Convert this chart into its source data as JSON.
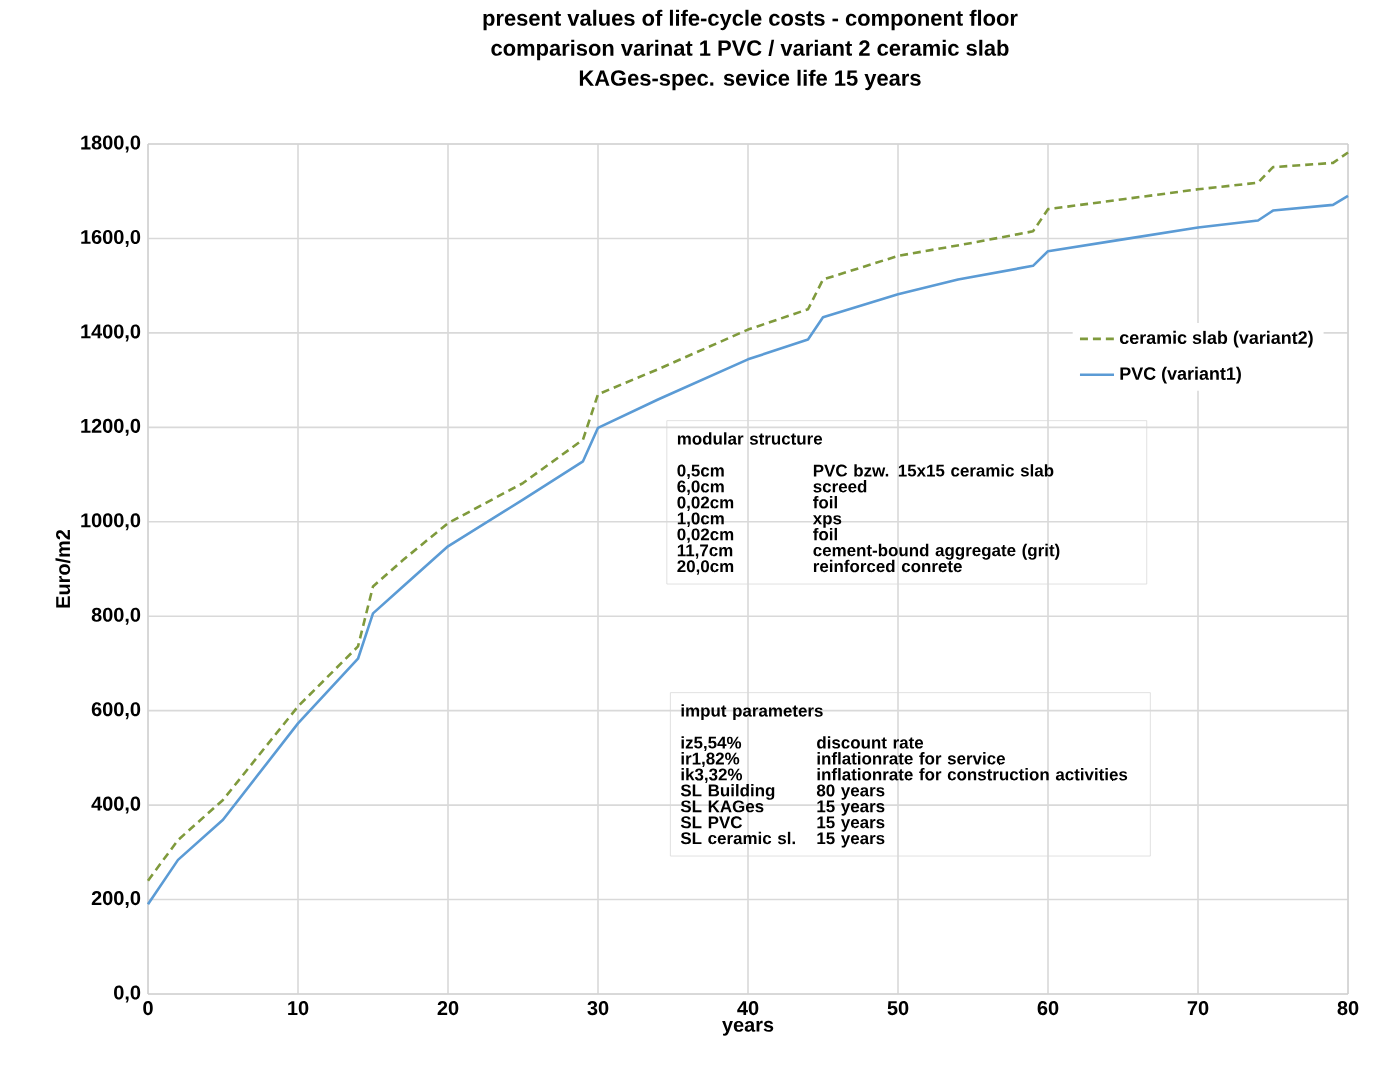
{
  "chart_data": {
    "type": "line",
    "title": "present values of life-cycle costs - component floor",
    "subtitle": "comparison varinat 1 PVC / variant 2 ceramic slab",
    "xlabel": "years",
    "ylabel": "Euro/m2",
    "xlim": [
      0,
      80
    ],
    "xticks": [
      0,
      10,
      20,
      30,
      40,
      50,
      60,
      70,
      80
    ],
    "ylim": [
      0,
      1800
    ],
    "yticks": [
      {
        "value": 0,
        "label": "0,0"
      },
      {
        "value": 200,
        "label": "200,0"
      },
      {
        "value": 400,
        "label": "400,0"
      },
      {
        "value": 600,
        "label": "600,0"
      },
      {
        "value": 800,
        "label": "800,0"
      },
      {
        "value": 1000,
        "label": "1000,0"
      },
      {
        "value": 1200,
        "label": "1200,0"
      },
      {
        "value": 1400,
        "label": "1400,0"
      },
      {
        "value": 1600,
        "label": "1600,0"
      },
      {
        "value": 1800,
        "label": "1800,0"
      }
    ],
    "grid": true,
    "legend": "right",
    "series": [
      {
        "name": "ceramic slab (variant2)",
        "color": "#7f9a3c",
        "line_style": "dashed",
        "x": [
          0,
          2,
          5,
          10,
          14,
          15,
          17,
          20,
          25,
          29,
          30,
          34,
          40,
          44,
          45,
          50,
          55,
          59,
          60,
          65,
          70,
          74,
          75,
          79,
          80
        ],
        "values": [
          240,
          326,
          411,
          609,
          736,
          863,
          919,
          997,
          1082,
          1174,
          1270,
          1323,
          1407,
          1450,
          1513,
          1563,
          1591,
          1615,
          1662,
          1683,
          1704,
          1718,
          1751,
          1760,
          1782
        ]
      },
      {
        "name": "PVC (variant1)",
        "color": "#5b9bd5",
        "line_style": "solid",
        "x": [
          0,
          2,
          5,
          10,
          14,
          15,
          17,
          20,
          25,
          29,
          30,
          34,
          40,
          44,
          45,
          50,
          54,
          59,
          60,
          65,
          70,
          74,
          75,
          79,
          80
        ],
        "values": [
          190,
          284,
          369,
          573,
          710,
          806,
          863,
          948,
          1047,
          1128,
          1199,
          1259,
          1344,
          1386,
          1433,
          1482,
          1513,
          1542,
          1573,
          1598,
          1623,
          1638,
          1659,
          1671,
          1690
        ]
      }
    ],
    "annotations": [
      "KAGes-spec.  sevice life 15 years",
      "modular structure",
      "0,5cm",
      "PVC bzw. 15x15 ceramic slab",
      "6,0cm",
      "screed",
      "0,02cm",
      "foil",
      "1,0cm",
      "xps",
      "0,02cm",
      "foil",
      "11,7cm",
      "cement-bound aggregate (grit)",
      "20,0cm",
      "reinforced conrete",
      "imput parameters",
      "iz5,54%",
      "discount rate",
      "ir1,82%",
      "inflationrate for service",
      "ik3,32%",
      "inflationrate for construction activities",
      "SL Building",
      "80 years",
      "SL KAGes",
      "15 years",
      "SL PVC",
      "15 years",
      "SL ceramic sl.",
      "15 years"
    ]
  }
}
